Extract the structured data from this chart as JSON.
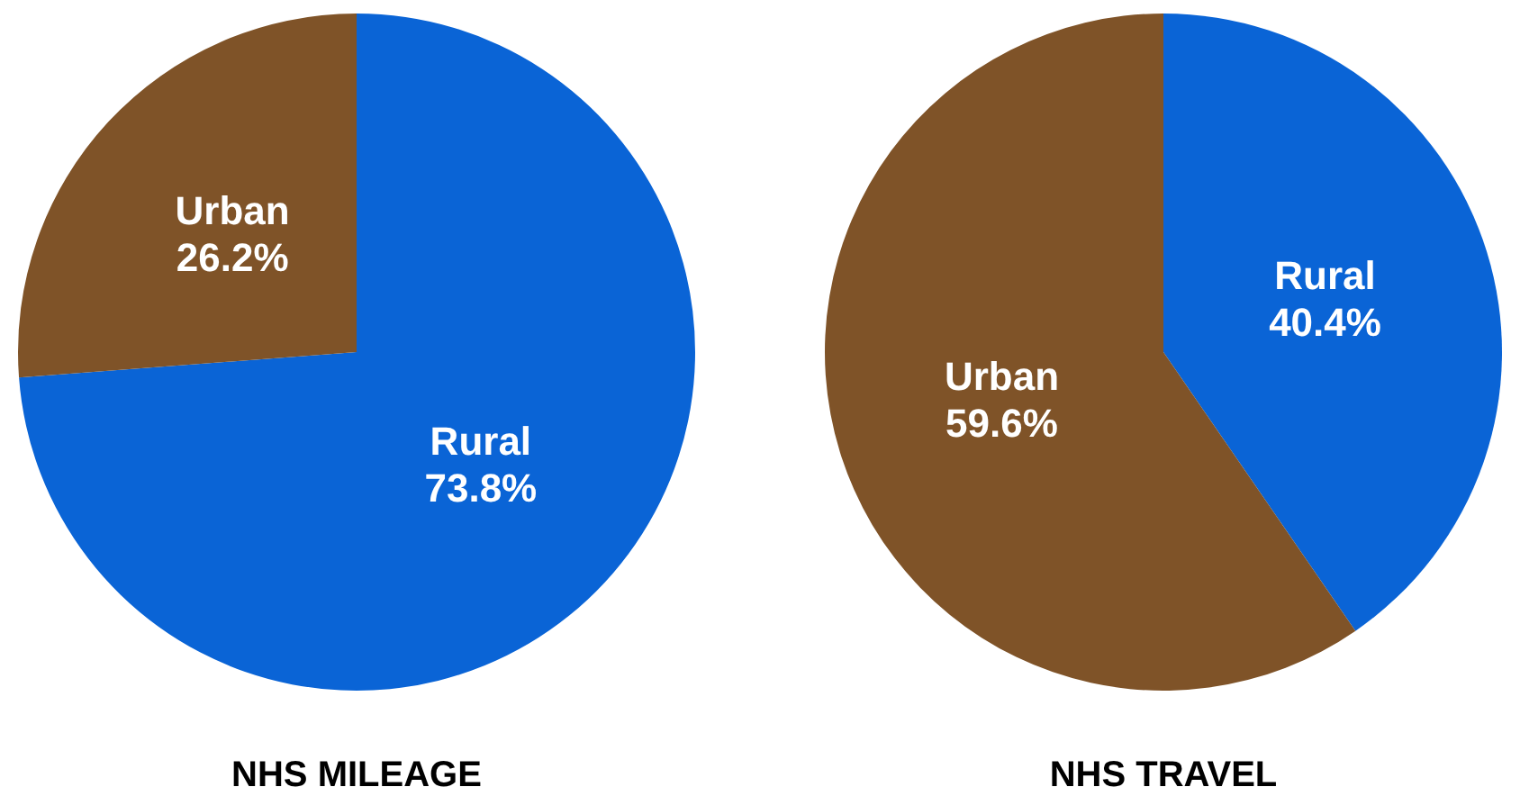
{
  "chart_data": [
    {
      "type": "pie",
      "title": "NHS MILEAGE",
      "categories": [
        "Rural",
        "Urban"
      ],
      "values": [
        73.8,
        26.2
      ],
      "value_labels": [
        "73.8%",
        "26.2%"
      ],
      "colors": [
        "#0a64d6",
        "#7f5328"
      ],
      "legend": false
    },
    {
      "type": "pie",
      "title": "NHS TRAVEL",
      "categories": [
        "Rural",
        "Urban"
      ],
      "values": [
        40.4,
        59.6
      ],
      "value_labels": [
        "40.4%",
        "59.6%"
      ],
      "colors": [
        "#0a64d6",
        "#7f5328"
      ],
      "legend": false
    }
  ]
}
